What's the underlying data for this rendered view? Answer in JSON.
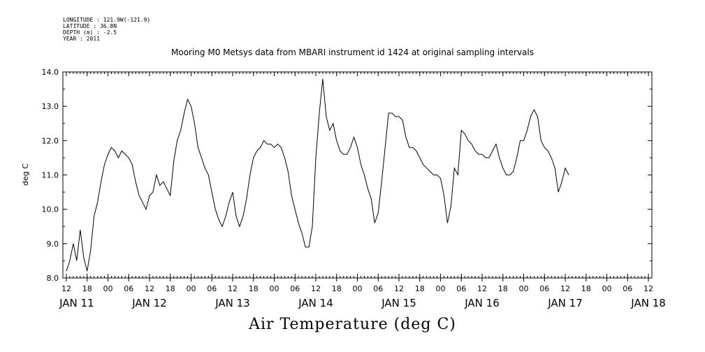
{
  "meta": {
    "longitude": "LONGITUDE : 121.9W(-121.9)",
    "latitude": "LATITUDE : 36.8N",
    "depth": "DEPTH (m) : -2.5",
    "year": "YEAR : 2011"
  },
  "chart_data": {
    "type": "line",
    "title": "Mooring M0 Metsys data from MBARI instrument id 1424 at original sampling intervals",
    "xlabel": "Air Temperature (deg C)",
    "ylabel": "deg C",
    "ylim": [
      8.0,
      14.0
    ],
    "yticks": [
      "8.0",
      "9.0",
      "10.0",
      "11.0",
      "12.0",
      "13.0",
      "14.0"
    ],
    "xlim_hours": [
      -1,
      169
    ],
    "hour_tick_labels": [
      "12",
      "18",
      "00",
      "06",
      "12",
      "18",
      "00",
      "06",
      "12",
      "18",
      "00",
      "06",
      "12",
      "18",
      "00",
      "06",
      "12",
      "18",
      "00",
      "06",
      "12",
      "18",
      "00",
      "06",
      "12",
      "18",
      "00",
      "06",
      "12"
    ],
    "day_labels": [
      "JAN 11",
      "JAN 12",
      "JAN 13",
      "JAN 14",
      "JAN 15",
      "JAN 16",
      "JAN 17",
      "JAN 18"
    ],
    "series": [
      {
        "points": [
          [
            0,
            8.2
          ],
          [
            1,
            8.5
          ],
          [
            2,
            9.0
          ],
          [
            3,
            8.5
          ],
          [
            4,
            9.4
          ],
          [
            5,
            8.6
          ],
          [
            6,
            8.2
          ],
          [
            7,
            8.8
          ],
          [
            8,
            9.8
          ],
          [
            9,
            10.2
          ],
          [
            10,
            10.8
          ],
          [
            11,
            11.3
          ],
          [
            12,
            11.6
          ],
          [
            13,
            11.8
          ],
          [
            14,
            11.7
          ],
          [
            15,
            11.5
          ],
          [
            16,
            11.7
          ],
          [
            17,
            11.6
          ],
          [
            18,
            11.5
          ],
          [
            19,
            11.3
          ],
          [
            20,
            10.8
          ],
          [
            21,
            10.4
          ],
          [
            22,
            10.2
          ],
          [
            23,
            10.0
          ],
          [
            24,
            10.4
          ],
          [
            25,
            10.5
          ],
          [
            26,
            11.0
          ],
          [
            27,
            10.7
          ],
          [
            28,
            10.8
          ],
          [
            29,
            10.6
          ],
          [
            30,
            10.4
          ],
          [
            31,
            11.4
          ],
          [
            32,
            12.0
          ],
          [
            33,
            12.3
          ],
          [
            34,
            12.8
          ],
          [
            35,
            13.2
          ],
          [
            36,
            13.0
          ],
          [
            37,
            12.5
          ],
          [
            38,
            11.8
          ],
          [
            39,
            11.5
          ],
          [
            40,
            11.2
          ],
          [
            41,
            11.0
          ],
          [
            42,
            10.5
          ],
          [
            43,
            10.0
          ],
          [
            44,
            9.7
          ],
          [
            45,
            9.5
          ],
          [
            46,
            9.8
          ],
          [
            47,
            10.2
          ],
          [
            48,
            10.5
          ],
          [
            49,
            9.8
          ],
          [
            50,
            9.5
          ],
          [
            51,
            9.8
          ],
          [
            52,
            10.3
          ],
          [
            53,
            11.0
          ],
          [
            54,
            11.5
          ],
          [
            55,
            11.7
          ],
          [
            56,
            11.8
          ],
          [
            57,
            12.0
          ],
          [
            58,
            11.9
          ],
          [
            59,
            11.9
          ],
          [
            60,
            11.8
          ],
          [
            61,
            11.9
          ],
          [
            62,
            11.8
          ],
          [
            63,
            11.5
          ],
          [
            64,
            11.1
          ],
          [
            65,
            10.4
          ],
          [
            66,
            10.0
          ],
          [
            67,
            9.6
          ],
          [
            68,
            9.3
          ],
          [
            69,
            8.9
          ],
          [
            70,
            8.9
          ],
          [
            71,
            9.5
          ],
          [
            72,
            11.5
          ],
          [
            73,
            12.8
          ],
          [
            74,
            13.8
          ],
          [
            75,
            12.7
          ],
          [
            76,
            12.3
          ],
          [
            77,
            12.5
          ],
          [
            78,
            12.0
          ],
          [
            79,
            11.7
          ],
          [
            80,
            11.6
          ],
          [
            81,
            11.6
          ],
          [
            82,
            11.8
          ],
          [
            83,
            12.1
          ],
          [
            84,
            11.8
          ],
          [
            85,
            11.3
          ],
          [
            86,
            11.0
          ],
          [
            87,
            10.6
          ],
          [
            88,
            10.3
          ],
          [
            89,
            9.6
          ],
          [
            90,
            9.9
          ],
          [
            91,
            10.8
          ],
          [
            92,
            11.8
          ],
          [
            93,
            12.8
          ],
          [
            94,
            12.8
          ],
          [
            95,
            12.7
          ],
          [
            96,
            12.7
          ],
          [
            97,
            12.6
          ],
          [
            98,
            12.1
          ],
          [
            99,
            11.8
          ],
          [
            100,
            11.8
          ],
          [
            101,
            11.7
          ],
          [
            102,
            11.5
          ],
          [
            103,
            11.3
          ],
          [
            104,
            11.2
          ],
          [
            105,
            11.1
          ],
          [
            106,
            11.0
          ],
          [
            107,
            11.0
          ],
          [
            108,
            10.9
          ],
          [
            109,
            10.4
          ],
          [
            110,
            9.6
          ],
          [
            111,
            10.1
          ],
          [
            112,
            11.2
          ],
          [
            113,
            11.0
          ],
          [
            114,
            12.3
          ],
          [
            115,
            12.2
          ],
          [
            116,
            12.0
          ],
          [
            117,
            11.9
          ],
          [
            118,
            11.7
          ],
          [
            119,
            11.6
          ],
          [
            120,
            11.6
          ],
          [
            121,
            11.5
          ],
          [
            122,
            11.5
          ],
          [
            123,
            11.7
          ],
          [
            124,
            11.9
          ],
          [
            125,
            11.5
          ],
          [
            126,
            11.2
          ],
          [
            127,
            11.0
          ],
          [
            128,
            11.0
          ],
          [
            129,
            11.1
          ],
          [
            130,
            11.5
          ],
          [
            131,
            12.0
          ],
          [
            132,
            12.0
          ],
          [
            133,
            12.3
          ],
          [
            134,
            12.7
          ],
          [
            135,
            12.9
          ],
          [
            136,
            12.7
          ],
          [
            137,
            12.0
          ],
          [
            138,
            11.8
          ],
          [
            139,
            11.7
          ],
          [
            140,
            11.5
          ],
          [
            141,
            11.2
          ],
          [
            142,
            10.5
          ],
          [
            143,
            10.8
          ],
          [
            144,
            11.2
          ],
          [
            145,
            11.0
          ]
        ]
      }
    ]
  }
}
